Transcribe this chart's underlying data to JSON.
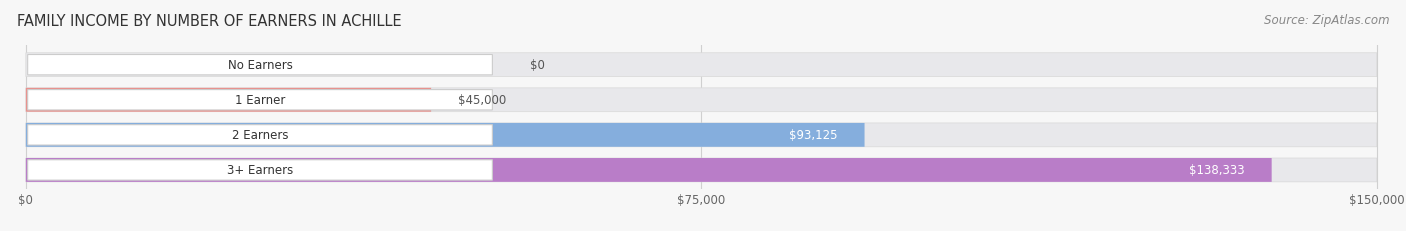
{
  "title": "FAMILY INCOME BY NUMBER OF EARNERS IN ACHILLE",
  "source": "Source: ZipAtlas.com",
  "categories": [
    "No Earners",
    "1 Earner",
    "2 Earners",
    "3+ Earners"
  ],
  "values": [
    0,
    45000,
    93125,
    138333
  ],
  "labels": [
    "$0",
    "$45,000",
    "$93,125",
    "$138,333"
  ],
  "bar_colors": [
    "#f5c98a",
    "#e8928e",
    "#85aedd",
    "#b97dc8"
  ],
  "bar_bg_color": "#e8e8eb",
  "label_colors": [
    "#666666",
    "#666666",
    "#ffffff",
    "#ffffff"
  ],
  "xlim_max": 150000,
  "xtick_labels": [
    "$0",
    "$75,000",
    "$150,000"
  ],
  "title_fontsize": 10.5,
  "source_fontsize": 8.5,
  "label_fontsize": 8.5,
  "tick_fontsize": 8.5,
  "cat_fontsize": 8.5,
  "figsize": [
    14.06,
    2.32
  ],
  "dpi": 100,
  "bg_color": "#f7f7f7"
}
